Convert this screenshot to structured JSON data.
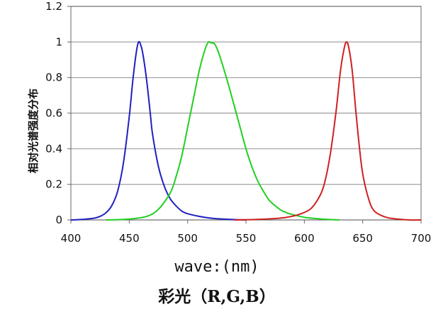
{
  "chart_data": {
    "type": "line",
    "xlabel": "wave:(nm)",
    "ylabel": "相对光谱强度分布",
    "caption": "彩光（R,G,B）",
    "xlim": [
      400,
      700
    ],
    "ylim": [
      0,
      1.2
    ],
    "x_ticks": [
      "400",
      "450",
      "500",
      "550",
      "600",
      "650",
      "700"
    ],
    "y_ticks": [
      "0",
      "0.2",
      "0.4",
      "0.6",
      "0.8",
      "1",
      "1.2"
    ],
    "grid": "horizontal",
    "series": [
      {
        "color": "#2020c0",
        "points": [
          [
            400,
            0.0
          ],
          [
            410,
            0.003
          ],
          [
            420,
            0.01
          ],
          [
            425,
            0.02
          ],
          [
            430,
            0.04
          ],
          [
            435,
            0.08
          ],
          [
            440,
            0.16
          ],
          [
            445,
            0.32
          ],
          [
            450,
            0.58
          ],
          [
            453,
            0.78
          ],
          [
            456,
            0.94
          ],
          [
            458,
            1.0
          ],
          [
            460,
            0.98
          ],
          [
            462,
            0.92
          ],
          [
            465,
            0.78
          ],
          [
            468,
            0.6
          ],
          [
            470,
            0.48
          ],
          [
            475,
            0.3
          ],
          [
            480,
            0.19
          ],
          [
            485,
            0.12
          ],
          [
            490,
            0.08
          ],
          [
            495,
            0.05
          ],
          [
            500,
            0.035
          ],
          [
            510,
            0.02
          ],
          [
            520,
            0.01
          ],
          [
            530,
            0.005
          ],
          [
            540,
            0.002
          ],
          [
            550,
            0.0
          ]
        ]
      },
      {
        "color": "#20d020",
        "points": [
          [
            430,
            0.0
          ],
          [
            450,
            0.005
          ],
          [
            465,
            0.02
          ],
          [
            475,
            0.06
          ],
          [
            485,
            0.15
          ],
          [
            490,
            0.24
          ],
          [
            495,
            0.36
          ],
          [
            500,
            0.52
          ],
          [
            505,
            0.68
          ],
          [
            510,
            0.84
          ],
          [
            515,
            0.96
          ],
          [
            518,
            1.0
          ],
          [
            520,
            0.995
          ],
          [
            523,
            0.99
          ],
          [
            526,
            0.95
          ],
          [
            530,
            0.87
          ],
          [
            535,
            0.76
          ],
          [
            540,
            0.64
          ],
          [
            545,
            0.52
          ],
          [
            550,
            0.4
          ],
          [
            555,
            0.3
          ],
          [
            560,
            0.22
          ],
          [
            565,
            0.16
          ],
          [
            570,
            0.11
          ],
          [
            575,
            0.08
          ],
          [
            580,
            0.055
          ],
          [
            585,
            0.04
          ],
          [
            590,
            0.03
          ],
          [
            600,
            0.015
          ],
          [
            610,
            0.008
          ],
          [
            620,
            0.003
          ],
          [
            630,
            0.0
          ]
        ]
      },
      {
        "color": "#d02020",
        "points": [
          [
            540,
            0.0
          ],
          [
            560,
            0.003
          ],
          [
            575,
            0.008
          ],
          [
            585,
            0.015
          ],
          [
            595,
            0.03
          ],
          [
            605,
            0.06
          ],
          [
            612,
            0.12
          ],
          [
            617,
            0.2
          ],
          [
            622,
            0.36
          ],
          [
            627,
            0.6
          ],
          [
            631,
            0.84
          ],
          [
            634,
            0.96
          ],
          [
            636,
            1.0
          ],
          [
            638,
            0.97
          ],
          [
            641,
            0.84
          ],
          [
            644,
            0.62
          ],
          [
            647,
            0.42
          ],
          [
            650,
            0.26
          ],
          [
            655,
            0.12
          ],
          [
            660,
            0.05
          ],
          [
            670,
            0.015
          ],
          [
            680,
            0.005
          ],
          [
            690,
            0.0
          ],
          [
            700,
            0.0
          ]
        ]
      }
    ]
  }
}
